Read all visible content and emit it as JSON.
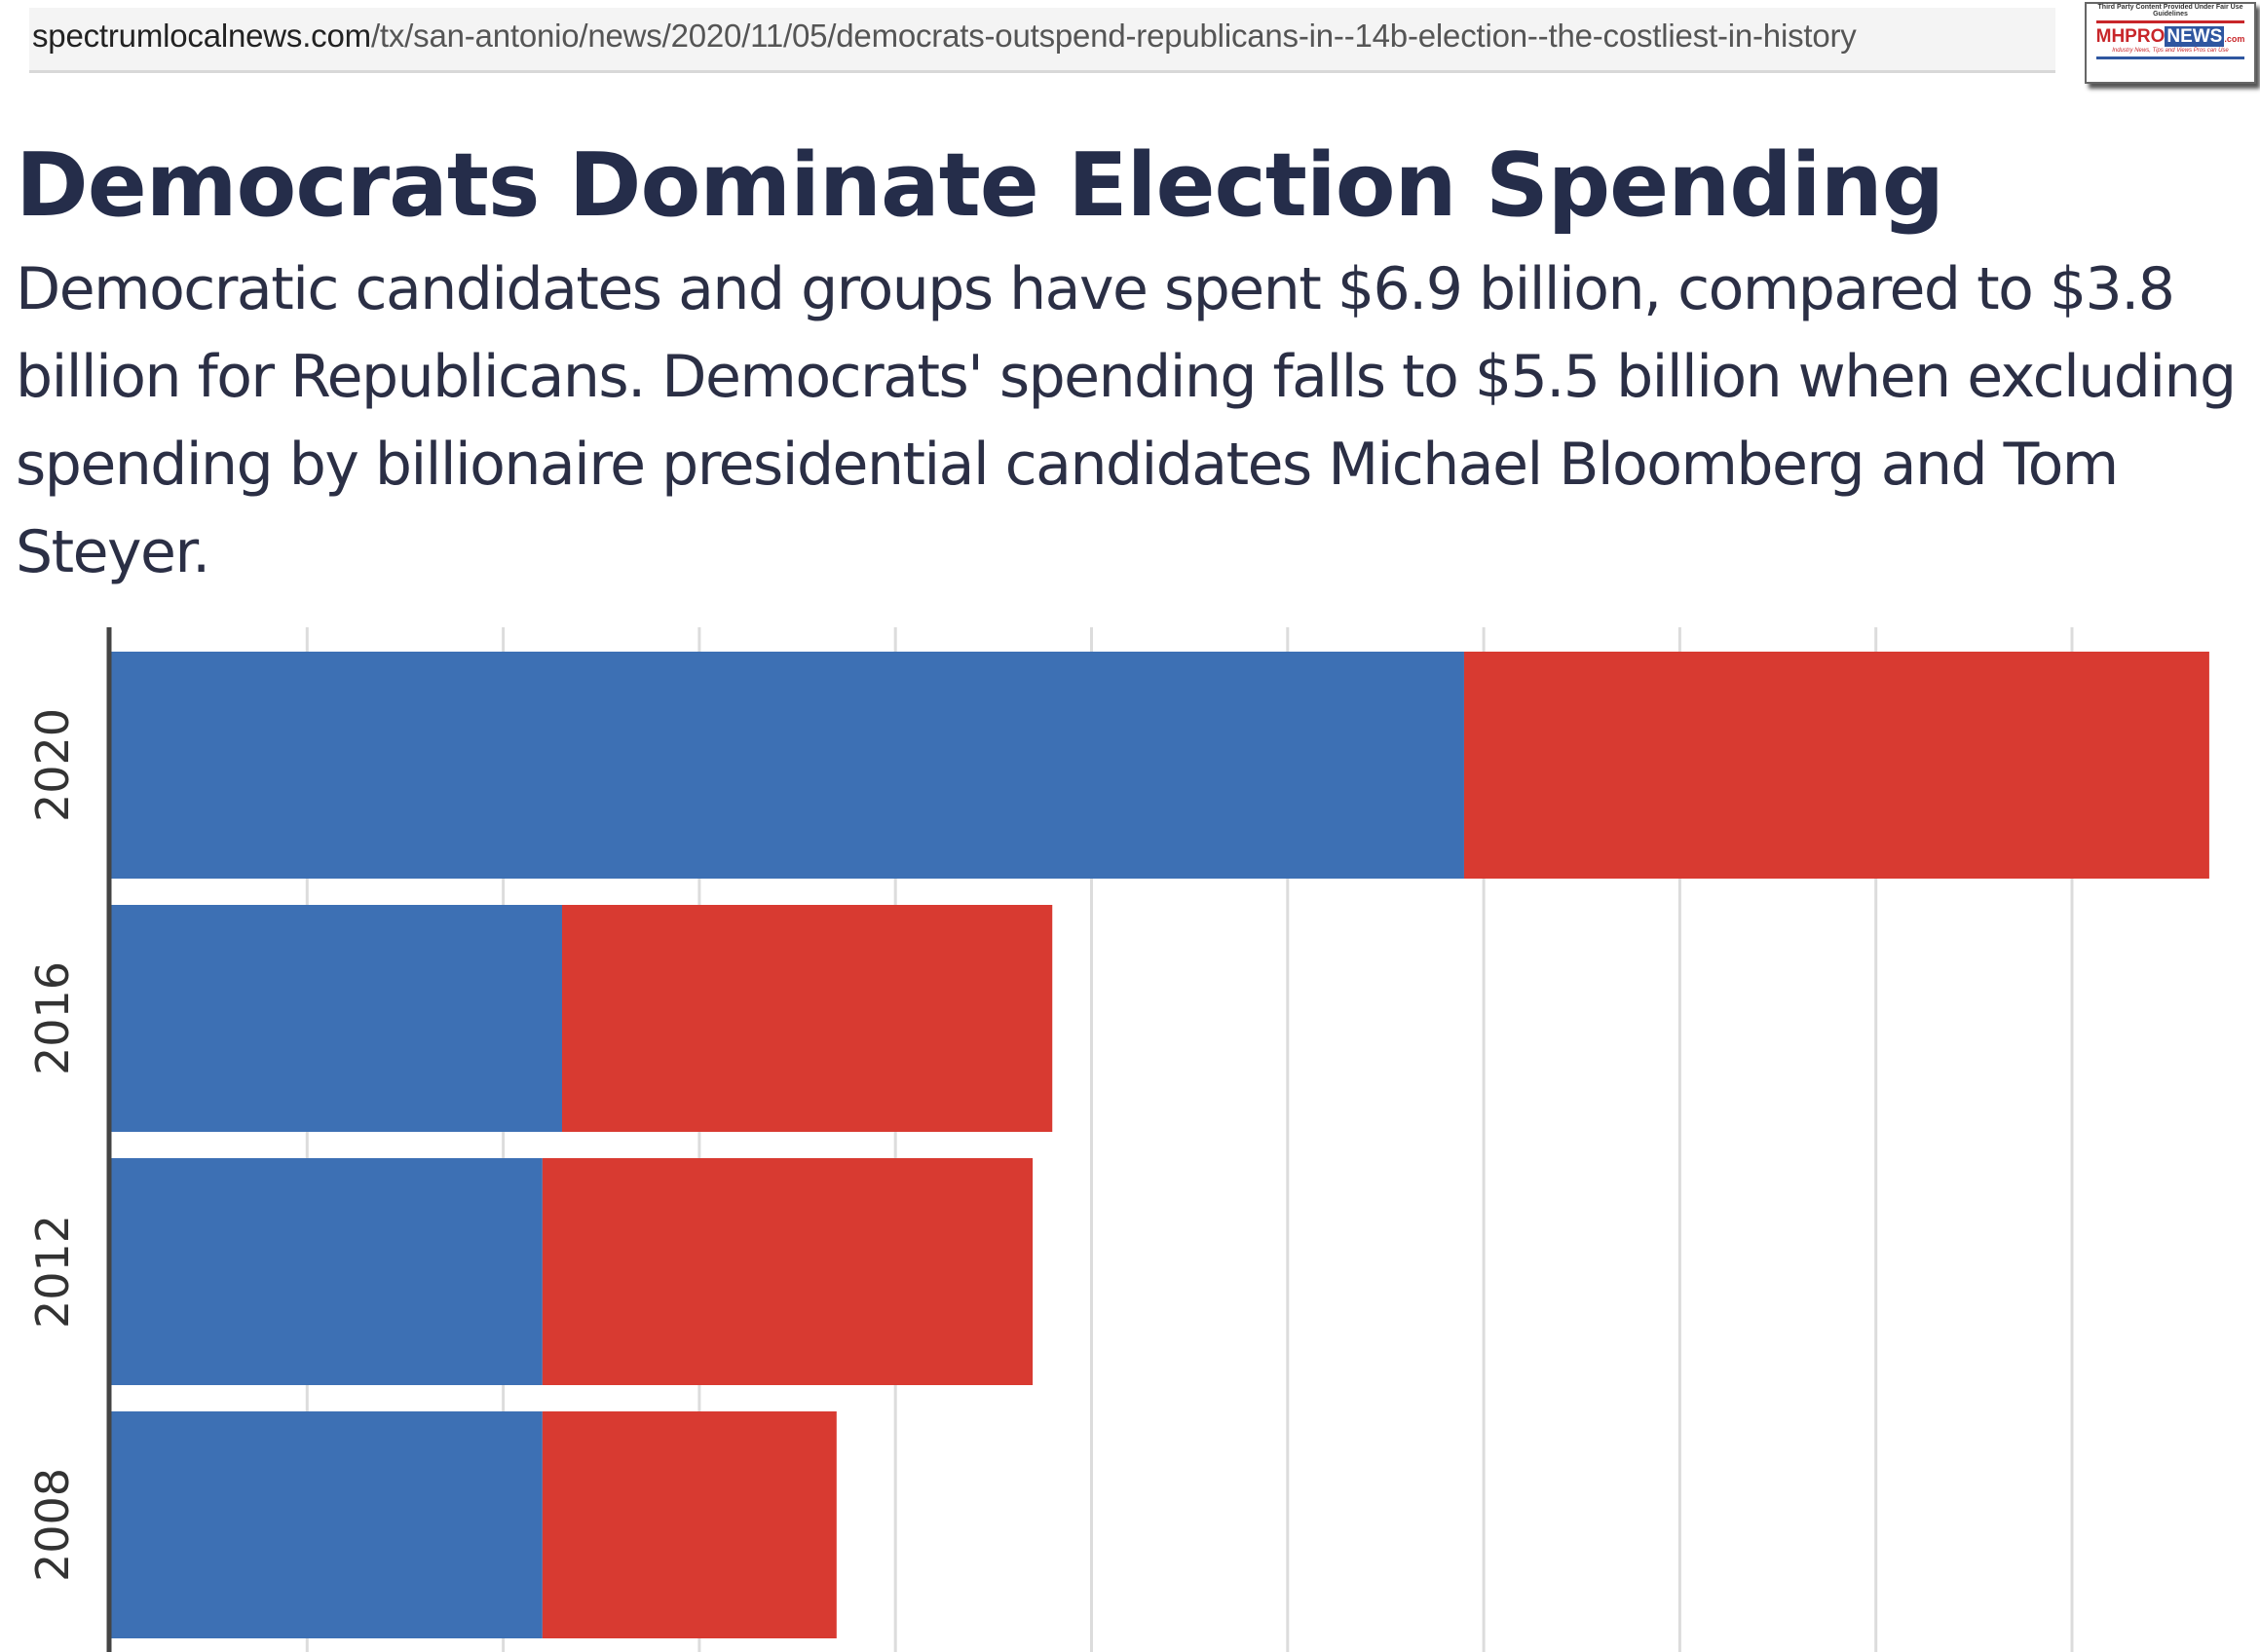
{
  "browser": {
    "url_domain": "spectrumlocalnews.com",
    "url_path": "/tx/san-antonio/news/2020/11/05/democrats-outspend-republicans-in--14b-election--the-costliest-in-history"
  },
  "watermark": {
    "caption": "Third Party Content Provided Under Fair Use Guidelines",
    "logo_text": "MHPRONEWS.com",
    "tagline": "Industry News, Tips and Views Pros can Use"
  },
  "header": {
    "title": "Democrats Dominate Election Spending",
    "subtitle": "Democratic candidates and groups have spent $6.9 billion, compared to $3.8 billion for Republicans. Democrats' spending falls to $5.5 billion when excluding spending by billionaire presidential candidates Michael Bloomberg and Tom Steyer."
  },
  "chart_data": {
    "type": "bar",
    "orientation": "horizontal",
    "stacked": true,
    "title": "Democrats Dominate Election Spending",
    "categories": [
      "2020",
      "2016",
      "2012",
      "2008"
    ],
    "series": [
      {
        "values": [
          6.9,
          2.3,
          2.2,
          2.2
        ],
        "color": "#3d70b4"
      },
      {
        "values": [
          3.8,
          2.5,
          2.5,
          1.5
        ],
        "color": "#d83a31"
      }
    ],
    "xlabel": "",
    "ylabel": "",
    "xlim": [
      0,
      10.9
    ],
    "grid": true,
    "gridline_step": 1,
    "unit": "billion $"
  }
}
